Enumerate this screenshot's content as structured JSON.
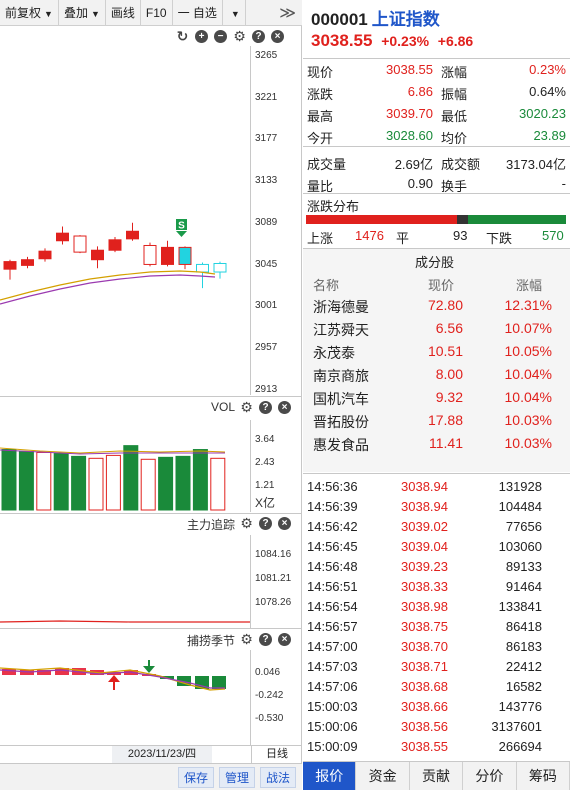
{
  "toolbar": {
    "fuquan": "前复权",
    "diejia": "叠加",
    "huaxian": "画线",
    "f10": "F10",
    "zixuan": "一 自选",
    "more": "≫"
  },
  "kline": {
    "y_labels": [
      "3265",
      "3221",
      "3177",
      "3133",
      "3089",
      "3045",
      "3001",
      "2957",
      "2913"
    ],
    "marker": "S",
    "candles": [
      {
        "open": 3040,
        "close": 3048,
        "high": 3050,
        "low": 3029
      },
      {
        "open": 3044,
        "close": 3050,
        "high": 3053,
        "low": 3041
      },
      {
        "open": 3051,
        "close": 3059,
        "high": 3062,
        "low": 3048
      },
      {
        "open": 3070,
        "close": 3078,
        "high": 3085,
        "low": 3066
      },
      {
        "open": 3058,
        "close": 3075,
        "high": 3076,
        "low": 3057
      },
      {
        "open": 3050,
        "close": 3060,
        "high": 3064,
        "low": 3041
      },
      {
        "open": 3060,
        "close": 3071,
        "high": 3074,
        "low": 3058
      },
      {
        "open": 3072,
        "close": 3080,
        "high": 3089,
        "low": 3070
      },
      {
        "open": 3045,
        "close": 3065,
        "high": 3068,
        "low": 3043
      },
      {
        "open": 3045,
        "close": 3063,
        "high": 3070,
        "low": 3043
      },
      {
        "open": 3063,
        "close": 3045,
        "high": 3064,
        "low": 3040
      },
      {
        "open": 3045,
        "close": 3037,
        "high": 3047,
        "low": 3020
      },
      {
        "open": 3037,
        "close": 3046,
        "high": 3048,
        "low": 3030
      }
    ]
  },
  "vol": {
    "title": "VOL",
    "y_labels": [
      "3.64",
      "2.43",
      "1.21"
    ],
    "unit": "X亿",
    "bars": [
      {
        "v": 3.1,
        "up": false
      },
      {
        "v": 3.0,
        "up": false
      },
      {
        "v": 2.95,
        "up": true
      },
      {
        "v": 2.9,
        "up": false
      },
      {
        "v": 2.75,
        "up": false
      },
      {
        "v": 2.65,
        "up": true
      },
      {
        "v": 2.8,
        "up": true
      },
      {
        "v": 3.3,
        "up": false
      },
      {
        "v": 2.6,
        "up": true
      },
      {
        "v": 2.7,
        "up": false
      },
      {
        "v": 2.75,
        "up": false
      },
      {
        "v": 3.1,
        "up": false
      },
      {
        "v": 2.65,
        "up": true
      }
    ]
  },
  "zhuli": {
    "title": "主力追踪",
    "y_labels": [
      "1084.16",
      "1081.21",
      "1078.26"
    ]
  },
  "bulao": {
    "title": "捕捞季节",
    "y_labels": [
      "0.046",
      "-0.242",
      "-0.530"
    ]
  },
  "date": "2023/11/23/四",
  "period": "日线",
  "bottom_buttons": [
    "保存",
    "管理",
    "战法"
  ],
  "header": {
    "code": "000001",
    "name": "上证指数",
    "price": "3038.55",
    "pct": "+0.23%",
    "chg": "+6.86"
  },
  "quote": [
    {
      "l1": "现价",
      "v1": "3038.55",
      "c1": "red",
      "l2": "涨幅",
      "v2": "0.23%",
      "c2": "red"
    },
    {
      "l1": "涨跌",
      "v1": "6.86",
      "c1": "red",
      "l2": "振幅",
      "v2": "0.64%",
      "c2": ""
    },
    {
      "l1": "最高",
      "v1": "3039.70",
      "c1": "red",
      "l2": "最低",
      "v2": "3020.23",
      "c2": "green"
    },
    {
      "l1": "今开",
      "v1": "3028.60",
      "c1": "green",
      "l2": "均价",
      "v2": "23.89",
      "c2": "green"
    },
    {
      "l1": "成交量",
      "v1": "2.69亿",
      "c1": "",
      "l2": "成交额",
      "v2": "3173.04亿",
      "c2": ""
    },
    {
      "l1": "量比",
      "v1": "0.90",
      "c1": "",
      "l2": "换手",
      "v2": "-",
      "c2": ""
    }
  ],
  "distribution": {
    "title": "涨跌分布",
    "up_label": "上涨",
    "up": "1476",
    "up_count": 1476,
    "flat_label": "平",
    "flat": "93",
    "flat_count": 93,
    "down_label": "下跌",
    "down": "570",
    "down_count": 570
  },
  "constituents": {
    "title": "成分股",
    "headers": [
      "名称",
      "现价",
      "涨幅"
    ],
    "rows": [
      {
        "name": "浙海德曼",
        "price": "72.80",
        "pct": "12.31%"
      },
      {
        "name": "江苏舜天",
        "price": "6.56",
        "pct": "10.07%"
      },
      {
        "name": "永茂泰",
        "price": "10.51",
        "pct": "10.05%"
      },
      {
        "name": "南京商旅",
        "price": "8.00",
        "pct": "10.04%"
      },
      {
        "name": "国机汽车",
        "price": "9.32",
        "pct": "10.04%"
      },
      {
        "name": "晋拓股份",
        "price": "17.88",
        "pct": "10.03%"
      },
      {
        "name": "惠发食品",
        "price": "11.41",
        "pct": "10.03%"
      }
    ]
  },
  "ticks": [
    {
      "t": "14:56:36",
      "p": "3038.94",
      "v": "131928"
    },
    {
      "t": "14:56:39",
      "p": "3038.94",
      "v": "104484"
    },
    {
      "t": "14:56:42",
      "p": "3039.02",
      "v": "77656"
    },
    {
      "t": "14:56:45",
      "p": "3039.04",
      "v": "103060"
    },
    {
      "t": "14:56:48",
      "p": "3039.23",
      "v": "89133"
    },
    {
      "t": "14:56:51",
      "p": "3038.33",
      "v": "91464"
    },
    {
      "t": "14:56:54",
      "p": "3038.98",
      "v": "133841"
    },
    {
      "t": "14:56:57",
      "p": "3038.75",
      "v": "86418"
    },
    {
      "t": "14:57:00",
      "p": "3038.70",
      "v": "86183"
    },
    {
      "t": "14:57:03",
      "p": "3038.71",
      "v": "22412"
    },
    {
      "t": "14:57:06",
      "p": "3038.68",
      "v": "16582"
    },
    {
      "t": "15:00:03",
      "p": "3038.66",
      "v": "143776"
    },
    {
      "t": "15:00:06",
      "p": "3038.56",
      "v": "3137601"
    },
    {
      "t": "15:00:09",
      "p": "3038.55",
      "v": "266694"
    }
  ],
  "tabs": [
    "报价",
    "资金",
    "贡献",
    "分价",
    "筹码"
  ],
  "colors": {
    "up": "#e0211d",
    "down": "#1a8a3a",
    "teal": "#22d3e0",
    "link": "#1f56c9"
  }
}
